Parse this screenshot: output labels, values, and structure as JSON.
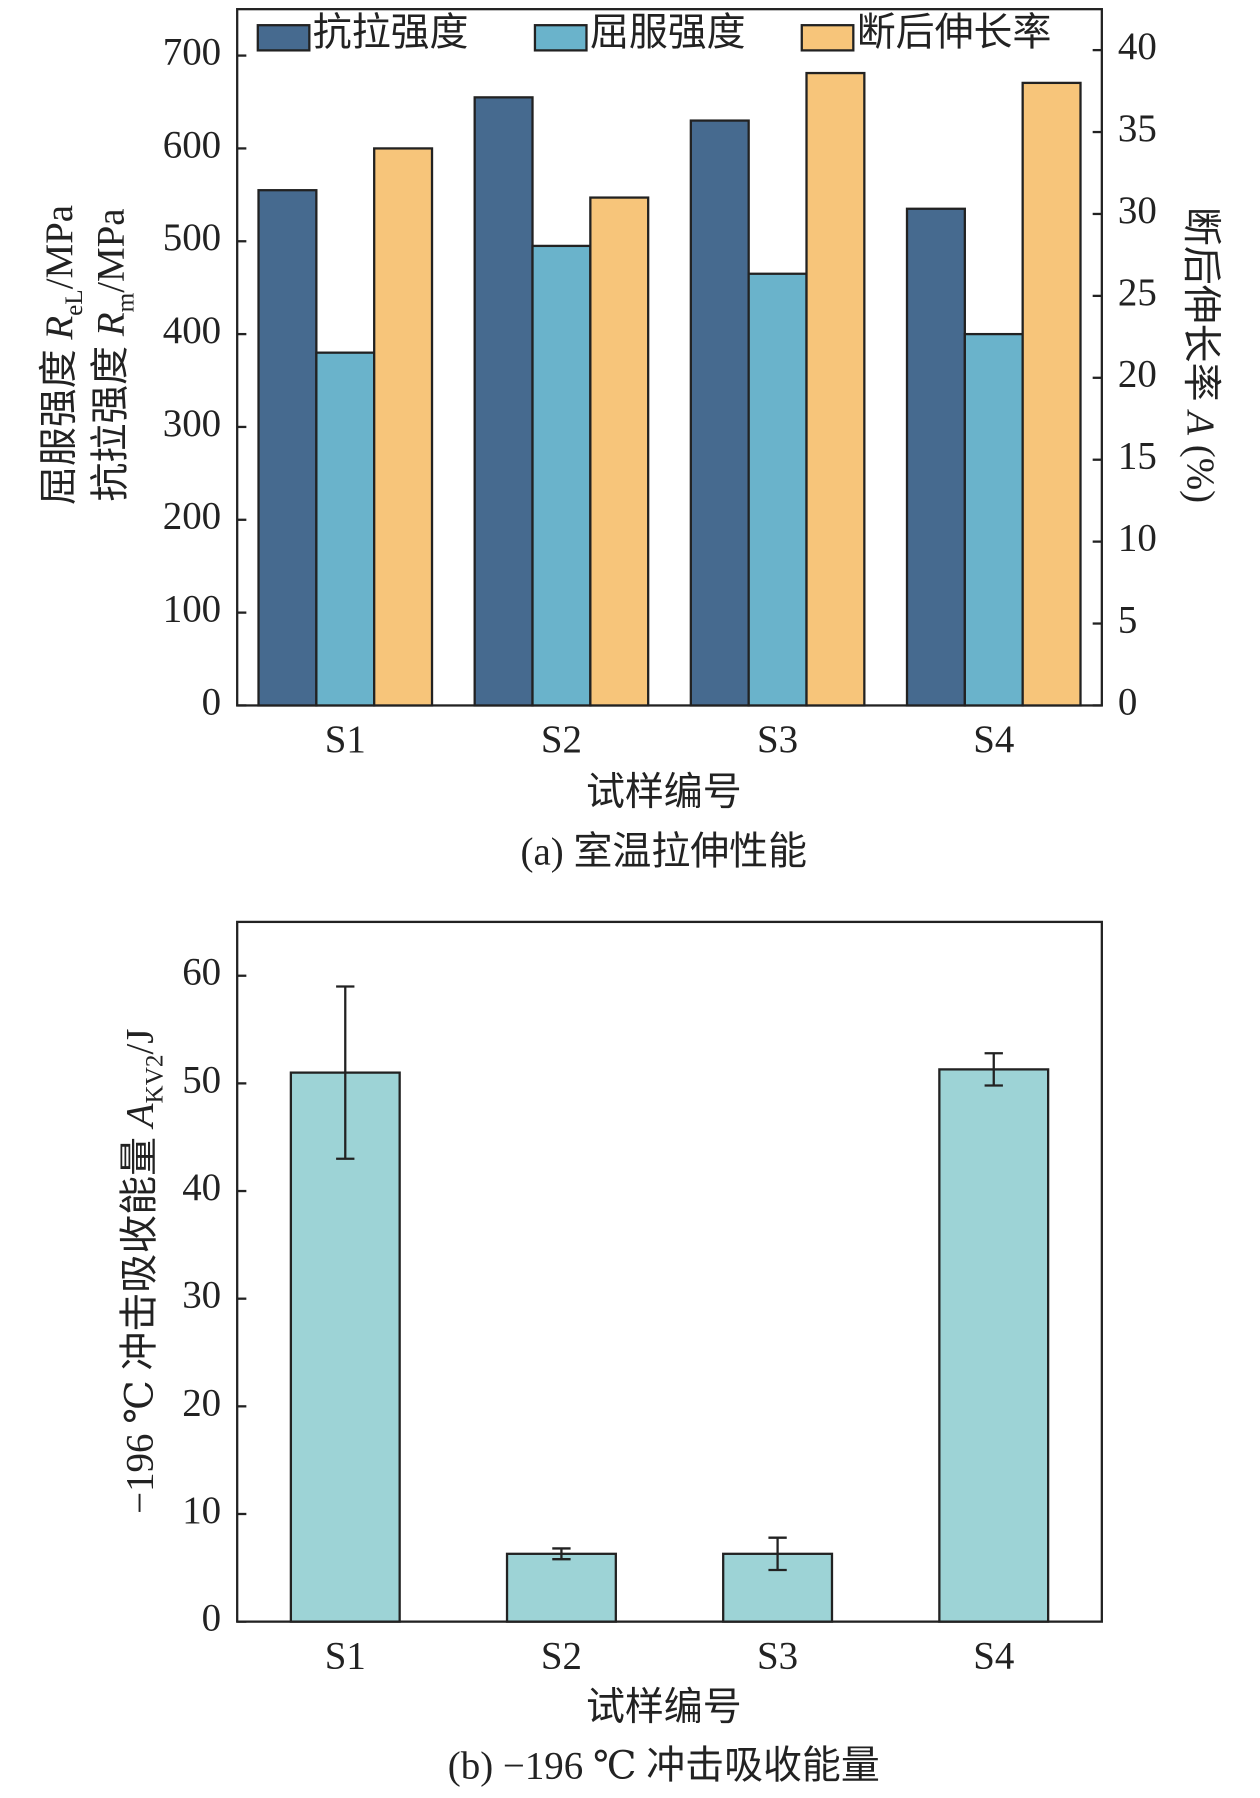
{
  "chart_data": [
    {
      "type": "bar",
      "categories": [
        "S1",
        "S2",
        "S3",
        "S4"
      ],
      "series": [
        {
          "name": "抗拉强度",
          "color": "#466a8f",
          "values": [
            555,
            655,
            630,
            535
          ]
        },
        {
          "name": "屈服强度",
          "color": "#6ab3cb",
          "values": [
            380,
            495,
            465,
            400
          ]
        },
        {
          "name": "断后伸长率",
          "color": "#f7c57a",
          "values": [
            34,
            31,
            38.6,
            38
          ],
          "axis": "y2"
        }
      ],
      "ylim": [
        0,
        750
      ],
      "yticks": [
        0,
        100,
        200,
        300,
        400,
        500,
        600,
        700
      ],
      "y2lim": [
        0,
        42.5
      ],
      "y2ticks": [
        0,
        5,
        10,
        15,
        20,
        25,
        30,
        35,
        40
      ],
      "ylabel": [
        [
          "屈服强度 ",
          "R",
          "eL",
          "/MPa"
        ],
        [
          "抗拉强度 ",
          "R",
          "m",
          "/MPa"
        ]
      ],
      "y2label": [
        "断后伸长率 ",
        "A",
        " (%)"
      ],
      "xlabel": "试样编号",
      "caption": "(a) 室温拉伸性能",
      "legend": "top"
    },
    {
      "type": "bar",
      "categories": [
        "S1",
        "S2",
        "S3",
        "S4"
      ],
      "values": [
        51,
        6.3,
        6.3,
        51.3
      ],
      "errors": [
        8,
        0.5,
        1.5,
        1.5
      ],
      "color": "#9dd3d6",
      "ylim": [
        0,
        65
      ],
      "yticks": [
        0,
        10,
        20,
        30,
        40,
        50,
        60
      ],
      "ylabel": [
        [
          "−196 ℃ 冲击吸收能量 ",
          "A",
          "KV2",
          "/J"
        ]
      ],
      "xlabel": "试样编号",
      "caption": "(b) −196 ℃ 冲击吸收能量"
    }
  ]
}
